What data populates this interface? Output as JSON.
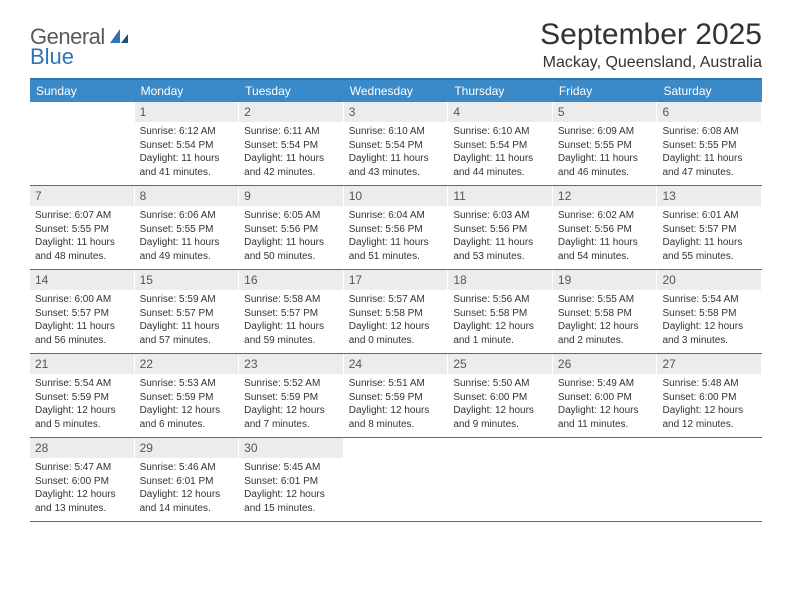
{
  "brand": {
    "part1": "General",
    "part2": "Blue"
  },
  "title": "September 2025",
  "location": "Mackay, Queensland, Australia",
  "colors": {
    "header_bar": "#3a8ac9",
    "rule": "#2e75b6",
    "daynum_bg": "#ececec",
    "text": "#333333"
  },
  "dow": [
    "Sunday",
    "Monday",
    "Tuesday",
    "Wednesday",
    "Thursday",
    "Friday",
    "Saturday"
  ],
  "weeks": [
    [
      {
        "n": "",
        "sr": "",
        "ss": "",
        "dl": ""
      },
      {
        "n": "1",
        "sr": "Sunrise: 6:12 AM",
        "ss": "Sunset: 5:54 PM",
        "dl": "Daylight: 11 hours and 41 minutes."
      },
      {
        "n": "2",
        "sr": "Sunrise: 6:11 AM",
        "ss": "Sunset: 5:54 PM",
        "dl": "Daylight: 11 hours and 42 minutes."
      },
      {
        "n": "3",
        "sr": "Sunrise: 6:10 AM",
        "ss": "Sunset: 5:54 PM",
        "dl": "Daylight: 11 hours and 43 minutes."
      },
      {
        "n": "4",
        "sr": "Sunrise: 6:10 AM",
        "ss": "Sunset: 5:54 PM",
        "dl": "Daylight: 11 hours and 44 minutes."
      },
      {
        "n": "5",
        "sr": "Sunrise: 6:09 AM",
        "ss": "Sunset: 5:55 PM",
        "dl": "Daylight: 11 hours and 46 minutes."
      },
      {
        "n": "6",
        "sr": "Sunrise: 6:08 AM",
        "ss": "Sunset: 5:55 PM",
        "dl": "Daylight: 11 hours and 47 minutes."
      }
    ],
    [
      {
        "n": "7",
        "sr": "Sunrise: 6:07 AM",
        "ss": "Sunset: 5:55 PM",
        "dl": "Daylight: 11 hours and 48 minutes."
      },
      {
        "n": "8",
        "sr": "Sunrise: 6:06 AM",
        "ss": "Sunset: 5:55 PM",
        "dl": "Daylight: 11 hours and 49 minutes."
      },
      {
        "n": "9",
        "sr": "Sunrise: 6:05 AM",
        "ss": "Sunset: 5:56 PM",
        "dl": "Daylight: 11 hours and 50 minutes."
      },
      {
        "n": "10",
        "sr": "Sunrise: 6:04 AM",
        "ss": "Sunset: 5:56 PM",
        "dl": "Daylight: 11 hours and 51 minutes."
      },
      {
        "n": "11",
        "sr": "Sunrise: 6:03 AM",
        "ss": "Sunset: 5:56 PM",
        "dl": "Daylight: 11 hours and 53 minutes."
      },
      {
        "n": "12",
        "sr": "Sunrise: 6:02 AM",
        "ss": "Sunset: 5:56 PM",
        "dl": "Daylight: 11 hours and 54 minutes."
      },
      {
        "n": "13",
        "sr": "Sunrise: 6:01 AM",
        "ss": "Sunset: 5:57 PM",
        "dl": "Daylight: 11 hours and 55 minutes."
      }
    ],
    [
      {
        "n": "14",
        "sr": "Sunrise: 6:00 AM",
        "ss": "Sunset: 5:57 PM",
        "dl": "Daylight: 11 hours and 56 minutes."
      },
      {
        "n": "15",
        "sr": "Sunrise: 5:59 AM",
        "ss": "Sunset: 5:57 PM",
        "dl": "Daylight: 11 hours and 57 minutes."
      },
      {
        "n": "16",
        "sr": "Sunrise: 5:58 AM",
        "ss": "Sunset: 5:57 PM",
        "dl": "Daylight: 11 hours and 59 minutes."
      },
      {
        "n": "17",
        "sr": "Sunrise: 5:57 AM",
        "ss": "Sunset: 5:58 PM",
        "dl": "Daylight: 12 hours and 0 minutes."
      },
      {
        "n": "18",
        "sr": "Sunrise: 5:56 AM",
        "ss": "Sunset: 5:58 PM",
        "dl": "Daylight: 12 hours and 1 minute."
      },
      {
        "n": "19",
        "sr": "Sunrise: 5:55 AM",
        "ss": "Sunset: 5:58 PM",
        "dl": "Daylight: 12 hours and 2 minutes."
      },
      {
        "n": "20",
        "sr": "Sunrise: 5:54 AM",
        "ss": "Sunset: 5:58 PM",
        "dl": "Daylight: 12 hours and 3 minutes."
      }
    ],
    [
      {
        "n": "21",
        "sr": "Sunrise: 5:54 AM",
        "ss": "Sunset: 5:59 PM",
        "dl": "Daylight: 12 hours and 5 minutes."
      },
      {
        "n": "22",
        "sr": "Sunrise: 5:53 AM",
        "ss": "Sunset: 5:59 PM",
        "dl": "Daylight: 12 hours and 6 minutes."
      },
      {
        "n": "23",
        "sr": "Sunrise: 5:52 AM",
        "ss": "Sunset: 5:59 PM",
        "dl": "Daylight: 12 hours and 7 minutes."
      },
      {
        "n": "24",
        "sr": "Sunrise: 5:51 AM",
        "ss": "Sunset: 5:59 PM",
        "dl": "Daylight: 12 hours and 8 minutes."
      },
      {
        "n": "25",
        "sr": "Sunrise: 5:50 AM",
        "ss": "Sunset: 6:00 PM",
        "dl": "Daylight: 12 hours and 9 minutes."
      },
      {
        "n": "26",
        "sr": "Sunrise: 5:49 AM",
        "ss": "Sunset: 6:00 PM",
        "dl": "Daylight: 12 hours and 11 minutes."
      },
      {
        "n": "27",
        "sr": "Sunrise: 5:48 AM",
        "ss": "Sunset: 6:00 PM",
        "dl": "Daylight: 12 hours and 12 minutes."
      }
    ],
    [
      {
        "n": "28",
        "sr": "Sunrise: 5:47 AM",
        "ss": "Sunset: 6:00 PM",
        "dl": "Daylight: 12 hours and 13 minutes."
      },
      {
        "n": "29",
        "sr": "Sunrise: 5:46 AM",
        "ss": "Sunset: 6:01 PM",
        "dl": "Daylight: 12 hours and 14 minutes."
      },
      {
        "n": "30",
        "sr": "Sunrise: 5:45 AM",
        "ss": "Sunset: 6:01 PM",
        "dl": "Daylight: 12 hours and 15 minutes."
      },
      {
        "n": "",
        "sr": "",
        "ss": "",
        "dl": ""
      },
      {
        "n": "",
        "sr": "",
        "ss": "",
        "dl": ""
      },
      {
        "n": "",
        "sr": "",
        "ss": "",
        "dl": ""
      },
      {
        "n": "",
        "sr": "",
        "ss": "",
        "dl": ""
      }
    ]
  ]
}
